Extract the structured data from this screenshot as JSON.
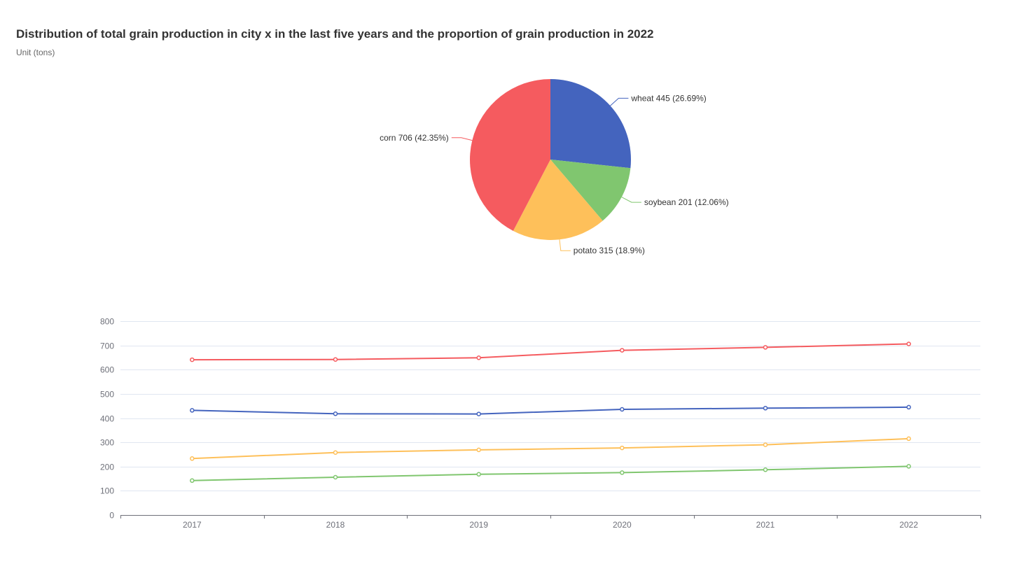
{
  "title": "Distribution of total grain production in city x in the last five years and the proportion of grain production in 2022",
  "subtitle": "Unit (tons)",
  "chart_data": [
    {
      "type": "pie",
      "slices": [
        {
          "name": "wheat",
          "value": 445,
          "percent": "26.69%",
          "label": "wheat 445 (26.69%)",
          "color": "#4464be"
        },
        {
          "name": "soybean",
          "value": 201,
          "percent": "12.06%",
          "label": "soybean 201 (12.06%)",
          "color": "#80c66f"
        },
        {
          "name": "potato",
          "value": 315,
          "percent": "18.9%",
          "label": "potato 315 (18.9%)",
          "color": "#fec05a"
        },
        {
          "name": "corn",
          "value": 706,
          "percent": "42.35%",
          "label": "corn 706 (42.35%)",
          "color": "#f55b5f"
        }
      ]
    },
    {
      "type": "line",
      "categories": [
        "2017",
        "2018",
        "2019",
        "2020",
        "2021",
        "2022"
      ],
      "ylim": [
        0,
        800
      ],
      "yticks": [
        0,
        100,
        200,
        300,
        400,
        500,
        600,
        700,
        800
      ],
      "grid": true,
      "series": [
        {
          "key": "corn",
          "color": "#f55b5f",
          "values": [
            641,
            642,
            649,
            680,
            692,
            706
          ]
        },
        {
          "key": "wheat",
          "color": "#4464be",
          "values": [
            432,
            418,
            417,
            436,
            441,
            445
          ]
        },
        {
          "key": "potato",
          "color": "#fec05a",
          "values": [
            233,
            258,
            269,
            277,
            290,
            315
          ]
        },
        {
          "key": "soybean",
          "color": "#80c66f",
          "values": [
            142,
            156,
            168,
            175,
            187,
            201
          ]
        }
      ]
    }
  ]
}
